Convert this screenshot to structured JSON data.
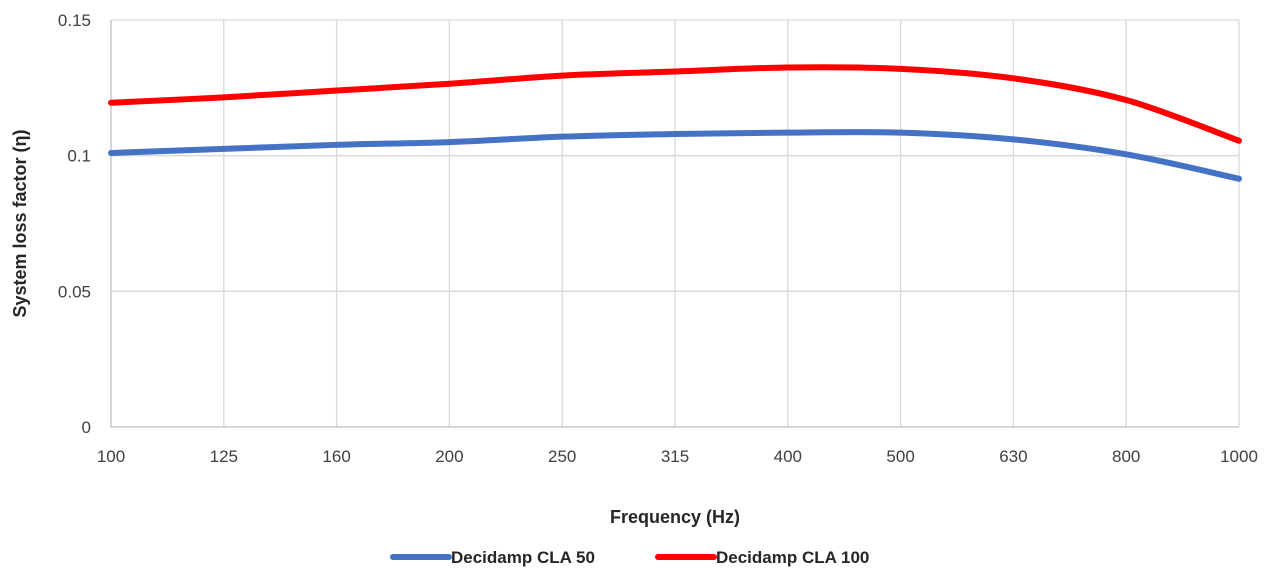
{
  "chart_data": {
    "type": "line",
    "title": "",
    "xlabel": "Frequency (Hz)",
    "ylabel": "System loss factor (η)",
    "categories": [
      "100",
      "125",
      "160",
      "200",
      "250",
      "315",
      "400",
      "500",
      "630",
      "800",
      "1000"
    ],
    "ylim": [
      0,
      0.15
    ],
    "yticks": [
      0,
      0.05,
      0.1,
      0.15
    ],
    "ytick_labels": [
      "0",
      "0.05",
      "0.1",
      "0.15"
    ],
    "grid": true,
    "legend_position": "bottom",
    "series": [
      {
        "name": "Decidamp CLA 50",
        "color": "#4472c4",
        "values": [
          0.101,
          0.1025,
          0.104,
          0.105,
          0.107,
          0.108,
          0.1085,
          0.1085,
          0.106,
          0.1005,
          0.0915
        ]
      },
      {
        "name": "Decidamp CLA 100",
        "color": "#ff0000",
        "values": [
          0.1195,
          0.1215,
          0.124,
          0.1265,
          0.1295,
          0.131,
          0.1325,
          0.132,
          0.1285,
          0.1205,
          0.1055
        ]
      }
    ]
  }
}
